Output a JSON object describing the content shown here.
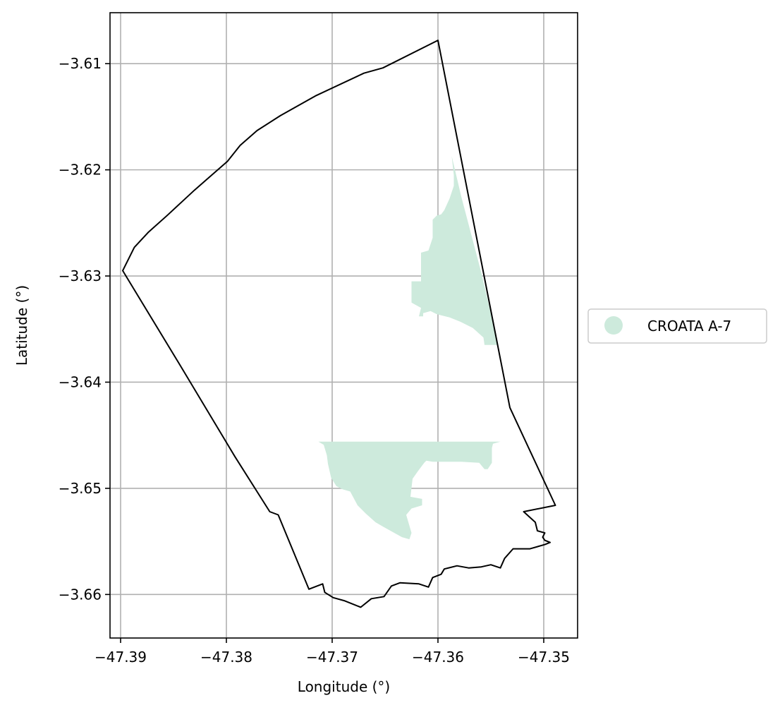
{
  "chart_data": {
    "type": "map",
    "title": "",
    "xlabel": "Longitude (°)",
    "ylabel": "Latitude (°)",
    "xlim": [
      -47.391,
      -47.3468
    ],
    "ylim": [
      -3.6641,
      -3.6052
    ],
    "grid": true,
    "x_ticks": [
      -47.39,
      -47.38,
      -47.37,
      -47.36,
      -47.35
    ],
    "x_tick_labels": [
      "−47.39",
      "−47.38",
      "−47.37",
      "−47.36",
      "−47.35"
    ],
    "y_ticks": [
      -3.61,
      -3.62,
      -3.63,
      -3.64,
      -3.65,
      -3.66
    ],
    "y_tick_labels": [
      "−3.61",
      "−3.62",
      "−3.63",
      "−3.64",
      "−3.65",
      "−3.66"
    ],
    "legend": {
      "placement": "right-center",
      "entries": [
        {
          "label": "CROATA A-7",
          "color": "#cdeadc"
        }
      ]
    },
    "colors": {
      "fill": "#cdeadc",
      "boundary": "#000000",
      "grid": "#b0b0b0"
    },
    "boundary": [
      [
        -47.36,
        -3.6078
      ],
      [
        -47.3652,
        -3.6104
      ],
      [
        -47.367,
        -3.6109
      ],
      [
        -47.3715,
        -3.613
      ],
      [
        -47.3749,
        -3.6149
      ],
      [
        -47.3771,
        -3.6163
      ],
      [
        -47.3787,
        -3.6177
      ],
      [
        -47.3799,
        -3.6192
      ],
      [
        -47.383,
        -3.6219
      ],
      [
        -47.3856,
        -3.6243
      ],
      [
        -47.3874,
        -3.6259
      ],
      [
        -47.3887,
        -3.6273
      ],
      [
        -47.3898,
        -3.6295
      ],
      [
        -47.3845,
        -3.6382
      ],
      [
        -47.3792,
        -3.647
      ],
      [
        -47.3759,
        -3.6522
      ],
      [
        -47.3751,
        -3.6525
      ],
      [
        -47.3722,
        -3.6595
      ],
      [
        -47.3709,
        -3.659
      ],
      [
        -47.3707,
        -3.6598
      ],
      [
        -47.3699,
        -3.6603
      ],
      [
        -47.3688,
        -3.6606
      ],
      [
        -47.3673,
        -3.6612
      ],
      [
        -47.3663,
        -3.6604
      ],
      [
        -47.3651,
        -3.6602
      ],
      [
        -47.3644,
        -3.6592
      ],
      [
        -47.3636,
        -3.6589
      ],
      [
        -47.3618,
        -3.659
      ],
      [
        -47.3609,
        -3.6593
      ],
      [
        -47.3605,
        -3.6584
      ],
      [
        -47.3597,
        -3.6581
      ],
      [
        -47.3594,
        -3.6576
      ],
      [
        -47.3582,
        -3.6573
      ],
      [
        -47.3571,
        -3.6575
      ],
      [
        -47.3559,
        -3.6574
      ],
      [
        -47.355,
        -3.6572
      ],
      [
        -47.3541,
        -3.6575
      ],
      [
        -47.3537,
        -3.6566
      ],
      [
        -47.3529,
        -3.6557
      ],
      [
        -47.3513,
        -3.6557
      ],
      [
        -47.3499,
        -3.6553
      ],
      [
        -47.3494,
        -3.6551
      ],
      [
        -47.3499,
        -3.6549
      ],
      [
        -47.3501,
        -3.6546
      ],
      [
        -47.3499,
        -3.6542
      ],
      [
        -47.3506,
        -3.654
      ],
      [
        -47.3508,
        -3.6532
      ],
      [
        -47.3519,
        -3.6522
      ],
      [
        -47.3489,
        -3.6516
      ],
      [
        -47.3532,
        -3.6424
      ]
    ],
    "areas": [
      {
        "name": "CROATA A-7",
        "polygons": [
          [
            [
              -47.3587,
              -3.6187
            ],
            [
              -47.3578,
              -3.6225
            ],
            [
              -47.3559,
              -3.6297
            ],
            [
              -47.3543,
              -3.6365
            ],
            [
              -47.3556,
              -3.6365
            ],
            [
              -47.3557,
              -3.6358
            ],
            [
              -47.3567,
              -3.6349
            ],
            [
              -47.3579,
              -3.6343
            ],
            [
              -47.3589,
              -3.6339
            ],
            [
              -47.3601,
              -3.6336
            ],
            [
              -47.3607,
              -3.6333
            ],
            [
              -47.3614,
              -3.6335
            ],
            [
              -47.3614,
              -3.6338
            ],
            [
              -47.3618,
              -3.6338
            ],
            [
              -47.3616,
              -3.633
            ],
            [
              -47.3625,
              -3.6325
            ],
            [
              -47.3625,
              -3.6305
            ],
            [
              -47.3616,
              -3.6305
            ],
            [
              -47.3616,
              -3.6278
            ],
            [
              -47.3609,
              -3.6276
            ],
            [
              -47.3605,
              -3.6264
            ],
            [
              -47.3605,
              -3.6247
            ],
            [
              -47.3601,
              -3.6243
            ],
            [
              -47.3597,
              -3.6242
            ],
            [
              -47.3594,
              -3.6238
            ],
            [
              -47.3589,
              -3.6227
            ],
            [
              -47.3585,
              -3.6215
            ],
            [
              -47.3585,
              -3.6205
            ]
          ],
          [
            [
              -47.3713,
              -3.6456
            ],
            [
              -47.3708,
              -3.6459
            ],
            [
              -47.3705,
              -3.6469
            ],
            [
              -47.3704,
              -3.6477
            ],
            [
              -47.3701,
              -3.649
            ],
            [
              -47.3696,
              -3.6498
            ],
            [
              -47.369,
              -3.6501
            ],
            [
              -47.3683,
              -3.6503
            ],
            [
              -47.3676,
              -3.6516
            ],
            [
              -47.3668,
              -3.6524
            ],
            [
              -47.3659,
              -3.6532
            ],
            [
              -47.3652,
              -3.6536
            ],
            [
              -47.3643,
              -3.6541
            ],
            [
              -47.3634,
              -3.6546
            ],
            [
              -47.3627,
              -3.6548
            ],
            [
              -47.3625,
              -3.6542
            ],
            [
              -47.363,
              -3.6525
            ],
            [
              -47.3625,
              -3.6519
            ],
            [
              -47.3615,
              -3.6516
            ],
            [
              -47.3615,
              -3.651
            ],
            [
              -47.3626,
              -3.6508
            ],
            [
              -47.3624,
              -3.6491
            ],
            [
              -47.3619,
              -3.6484
            ],
            [
              -47.3613,
              -3.6476
            ],
            [
              -47.3611,
              -3.6474
            ],
            [
              -47.3605,
              -3.6475
            ],
            [
              -47.3593,
              -3.6475
            ],
            [
              -47.3578,
              -3.6475
            ],
            [
              -47.3561,
              -3.6476
            ],
            [
              -47.3556,
              -3.6482
            ],
            [
              -47.3553,
              -3.6482
            ],
            [
              -47.3549,
              -3.6476
            ],
            [
              -47.3549,
              -3.6462
            ],
            [
              -47.3548,
              -3.6458
            ],
            [
              -47.3541,
              -3.6456
            ],
            [
              -47.3534,
              -3.6456
            ]
          ]
        ]
      }
    ]
  }
}
